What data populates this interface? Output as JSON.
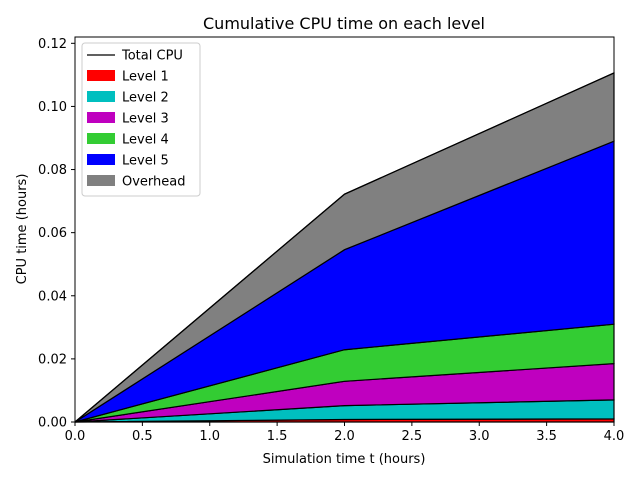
{
  "chart_data": {
    "type": "area",
    "stacked": true,
    "title": "Cumulative CPU time on each level",
    "xlabel": "Simulation time t (hours)",
    "ylabel": "CPU time (hours)",
    "x": [
      0.0,
      2.0,
      4.0
    ],
    "xlim": [
      0.0,
      4.0
    ],
    "ylim": [
      0.0,
      0.122
    ],
    "xticks": [
      0.0,
      0.5,
      1.0,
      1.5,
      2.0,
      2.5,
      3.0,
      3.5,
      4.0
    ],
    "xtick_labels": [
      "0.0",
      "0.5",
      "1.0",
      "1.5",
      "2.0",
      "2.5",
      "3.0",
      "3.5",
      "4.0"
    ],
    "yticks": [
      0.0,
      0.02,
      0.04,
      0.06,
      0.08,
      0.1,
      0.12
    ],
    "ytick_labels": [
      "0.00",
      "0.02",
      "0.04",
      "0.06",
      "0.08",
      "0.10",
      "0.12"
    ],
    "grid": false,
    "legend_position": "top-left",
    "total": {
      "name": "Total CPU",
      "values": [
        0.0,
        0.0722,
        0.1106
      ],
      "color": "#000000"
    },
    "series": [
      {
        "name": "Level 1",
        "values": [
          0.0,
          0.0008,
          0.001
        ],
        "color": "#ff0000"
      },
      {
        "name": "Level 2",
        "values": [
          0.0,
          0.0044,
          0.006
        ],
        "color": "#00bfbf"
      },
      {
        "name": "Level 3",
        "values": [
          0.0,
          0.0077,
          0.0115
        ],
        "color": "#bf00bf"
      },
      {
        "name": "Level 4",
        "values": [
          0.0,
          0.01,
          0.0125
        ],
        "color": "#33cc33"
      },
      {
        "name": "Level 5",
        "values": [
          0.0,
          0.0317,
          0.058
        ],
        "color": "#0000ff"
      },
      {
        "name": "Overhead",
        "values": [
          0.0,
          0.0176,
          0.0216
        ],
        "color": "#808080"
      }
    ]
  }
}
